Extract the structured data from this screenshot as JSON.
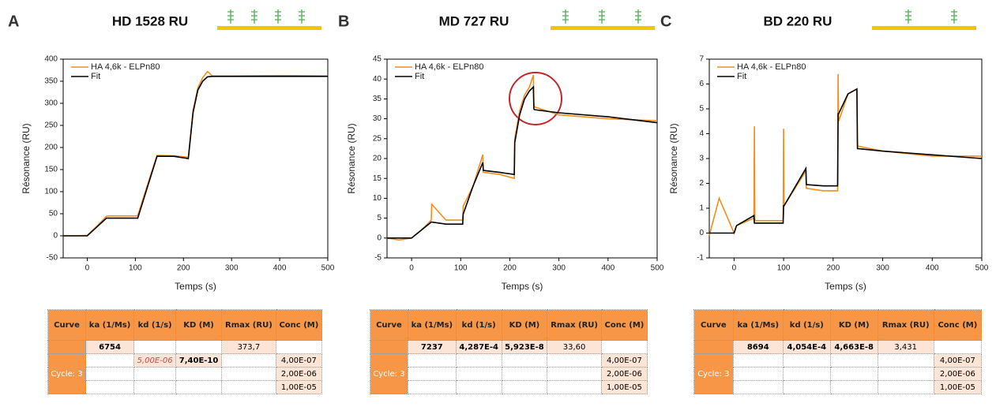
{
  "panels": [
    {
      "panel_label": "A",
      "title": "HD 1528 RU"
    },
    {
      "panel_label": "B",
      "title": "MD 727 RU"
    },
    {
      "panel_label": "C",
      "title": "BD 220 RU"
    }
  ],
  "chart_data": [
    {
      "type": "line",
      "xlabel": "Temps (s)",
      "ylabel": "Résonance (RU)",
      "x": [
        -50,
        -25,
        0,
        20,
        40,
        45,
        70,
        104,
        105,
        125,
        145,
        150,
        180,
        209,
        210,
        220,
        230,
        240,
        250,
        260,
        300,
        400,
        500
      ],
      "series": [
        {
          "name": "HA 4,6k - ELPn80",
          "color": "#f28e1c",
          "values": [
            0,
            0,
            1,
            22,
            44,
            45,
            45,
            45,
            46,
            115,
            182,
            182,
            181,
            178,
            176,
            285,
            335,
            358,
            372,
            362,
            362,
            363,
            362
          ]
        },
        {
          "name": "Fit",
          "color": "#000000",
          "values": [
            0,
            0,
            0,
            20,
            40,
            40,
            40,
            40,
            40,
            110,
            180,
            180,
            180,
            175,
            175,
            280,
            330,
            350,
            360,
            361,
            361,
            361,
            361
          ]
        }
      ],
      "xlim": [
        -50,
        500
      ],
      "ylim": [
        -50,
        400
      ],
      "xticks": [
        0,
        100,
        200,
        300,
        400,
        500
      ],
      "yticks": [
        -50,
        0,
        50,
        100,
        150,
        200,
        250,
        300,
        350,
        400
      ],
      "grid": false
    },
    {
      "type": "line",
      "xlabel": "Temps (s)",
      "ylabel": "Résonance (RU)",
      "x": [
        -50,
        -25,
        0,
        20,
        40,
        41,
        70,
        104,
        105,
        125,
        145,
        146,
        180,
        209,
        210,
        220,
        230,
        240,
        248,
        249,
        250,
        300,
        400,
        500
      ],
      "series": [
        {
          "name": "HA 4,6k - ELPn80",
          "color": "#f28e1c",
          "values": [
            0,
            -0.5,
            0,
            2,
            4.5,
            8.5,
            4.5,
            4.5,
            8,
            13,
            21,
            16.5,
            16,
            15,
            25,
            32,
            36,
            38,
            41,
            34,
            33,
            31,
            30,
            29.5
          ]
        },
        {
          "name": "Fit",
          "color": "#000000",
          "values": [
            0,
            0,
            0,
            2,
            4,
            4,
            3.5,
            3.5,
            6,
            13,
            19,
            17,
            16.5,
            16,
            24,
            31,
            35,
            37,
            38,
            32.5,
            32.3,
            31.5,
            30.5,
            29
          ]
        }
      ],
      "xlim": [
        -50,
        500
      ],
      "ylim": [
        -5,
        45
      ],
      "xticks": [
        0,
        100,
        200,
        300,
        400,
        500
      ],
      "yticks": [
        -5,
        0,
        5,
        10,
        15,
        20,
        25,
        30,
        35,
        40,
        45
      ],
      "grid": false
    },
    {
      "type": "line",
      "xlabel": "Temps (s)",
      "ylabel": "Résonance (RU)",
      "x": [
        -50,
        -30,
        0,
        5,
        40,
        41,
        42,
        70,
        99,
        100,
        101,
        145,
        146,
        180,
        209,
        210,
        211,
        230,
        248,
        249,
        250,
        300,
        400,
        500
      ],
      "series": [
        {
          "name": "HA 4,6k - ELPn80",
          "color": "#f28e1c",
          "values": [
            -0.1,
            1.4,
            0,
            0.3,
            0.6,
            4.3,
            0.5,
            0.5,
            0.5,
            4.2,
            1.1,
            2.5,
            1.8,
            1.7,
            1.7,
            6.4,
            4.5,
            5.6,
            5.8,
            3.6,
            3.5,
            3.3,
            3.1,
            3.1
          ]
        },
        {
          "name": "Fit",
          "color": "#000000",
          "values": [
            0,
            0,
            0,
            0.3,
            0.7,
            0.4,
            0.4,
            0.4,
            0.4,
            1.1,
            1.1,
            2.6,
            1.95,
            1.9,
            1.9,
            4.8,
            4.8,
            5.6,
            5.8,
            3.4,
            3.4,
            3.3,
            3.15,
            3.0
          ]
        }
      ],
      "xlim": [
        -50,
        500
      ],
      "ylim": [
        -1,
        7
      ],
      "xticks": [
        0,
        100,
        200,
        300,
        400,
        500
      ],
      "yticks": [
        -1,
        0,
        1,
        2,
        3,
        4,
        5,
        6,
        7
      ],
      "grid": false
    }
  ],
  "tables": [
    {
      "header": [
        "Curve",
        "ka (1/Ms)",
        "kd (1/s)",
        "KD (M)",
        "Rmax (RU)",
        "Conc (M)"
      ],
      "summary": [
        null,
        "6754",
        null,
        null,
        "373,7",
        null
      ],
      "cycle_label": "Cycle: 3",
      "cycle_rows": [
        [
          null,
          "5,00E-06",
          "7,40E-10",
          null,
          "4,00E-07"
        ],
        [
          null,
          null,
          null,
          null,
          "2,00E-06"
        ],
        [
          null,
          null,
          null,
          null,
          "1,00E-05"
        ]
      ]
    },
    {
      "header": [
        "Curve",
        "ka (1/Ms)",
        "kd (1/s)",
        "KD (M)",
        "Rmax (RU)",
        "Conc (M)"
      ],
      "summary": [
        null,
        "7237",
        "4,287E-4",
        "5,923E-8",
        "33,60",
        null
      ],
      "cycle_label": "Cycle: 3",
      "cycle_rows": [
        [
          null,
          null,
          null,
          null,
          "4,00E-07"
        ],
        [
          null,
          null,
          null,
          null,
          "2,00E-06"
        ],
        [
          null,
          null,
          null,
          null,
          "1,00E-05"
        ]
      ]
    },
    {
      "header": [
        "Curve",
        "ka (1/Ms)",
        "kd (1/s)",
        "KD (M)",
        "Rmax (RU)",
        "Conc (M)"
      ],
      "summary": [
        null,
        "8694",
        "4,054E-4",
        "4,663E-8",
        "3,431",
        null
      ],
      "cycle_label": "Cycle: 3",
      "cycle_rows": [
        [
          null,
          null,
          null,
          null,
          "4,00E-07"
        ],
        [
          null,
          null,
          null,
          null,
          "2,00E-06"
        ],
        [
          null,
          null,
          null,
          null,
          "1,00E-05"
        ]
      ]
    }
  ]
}
